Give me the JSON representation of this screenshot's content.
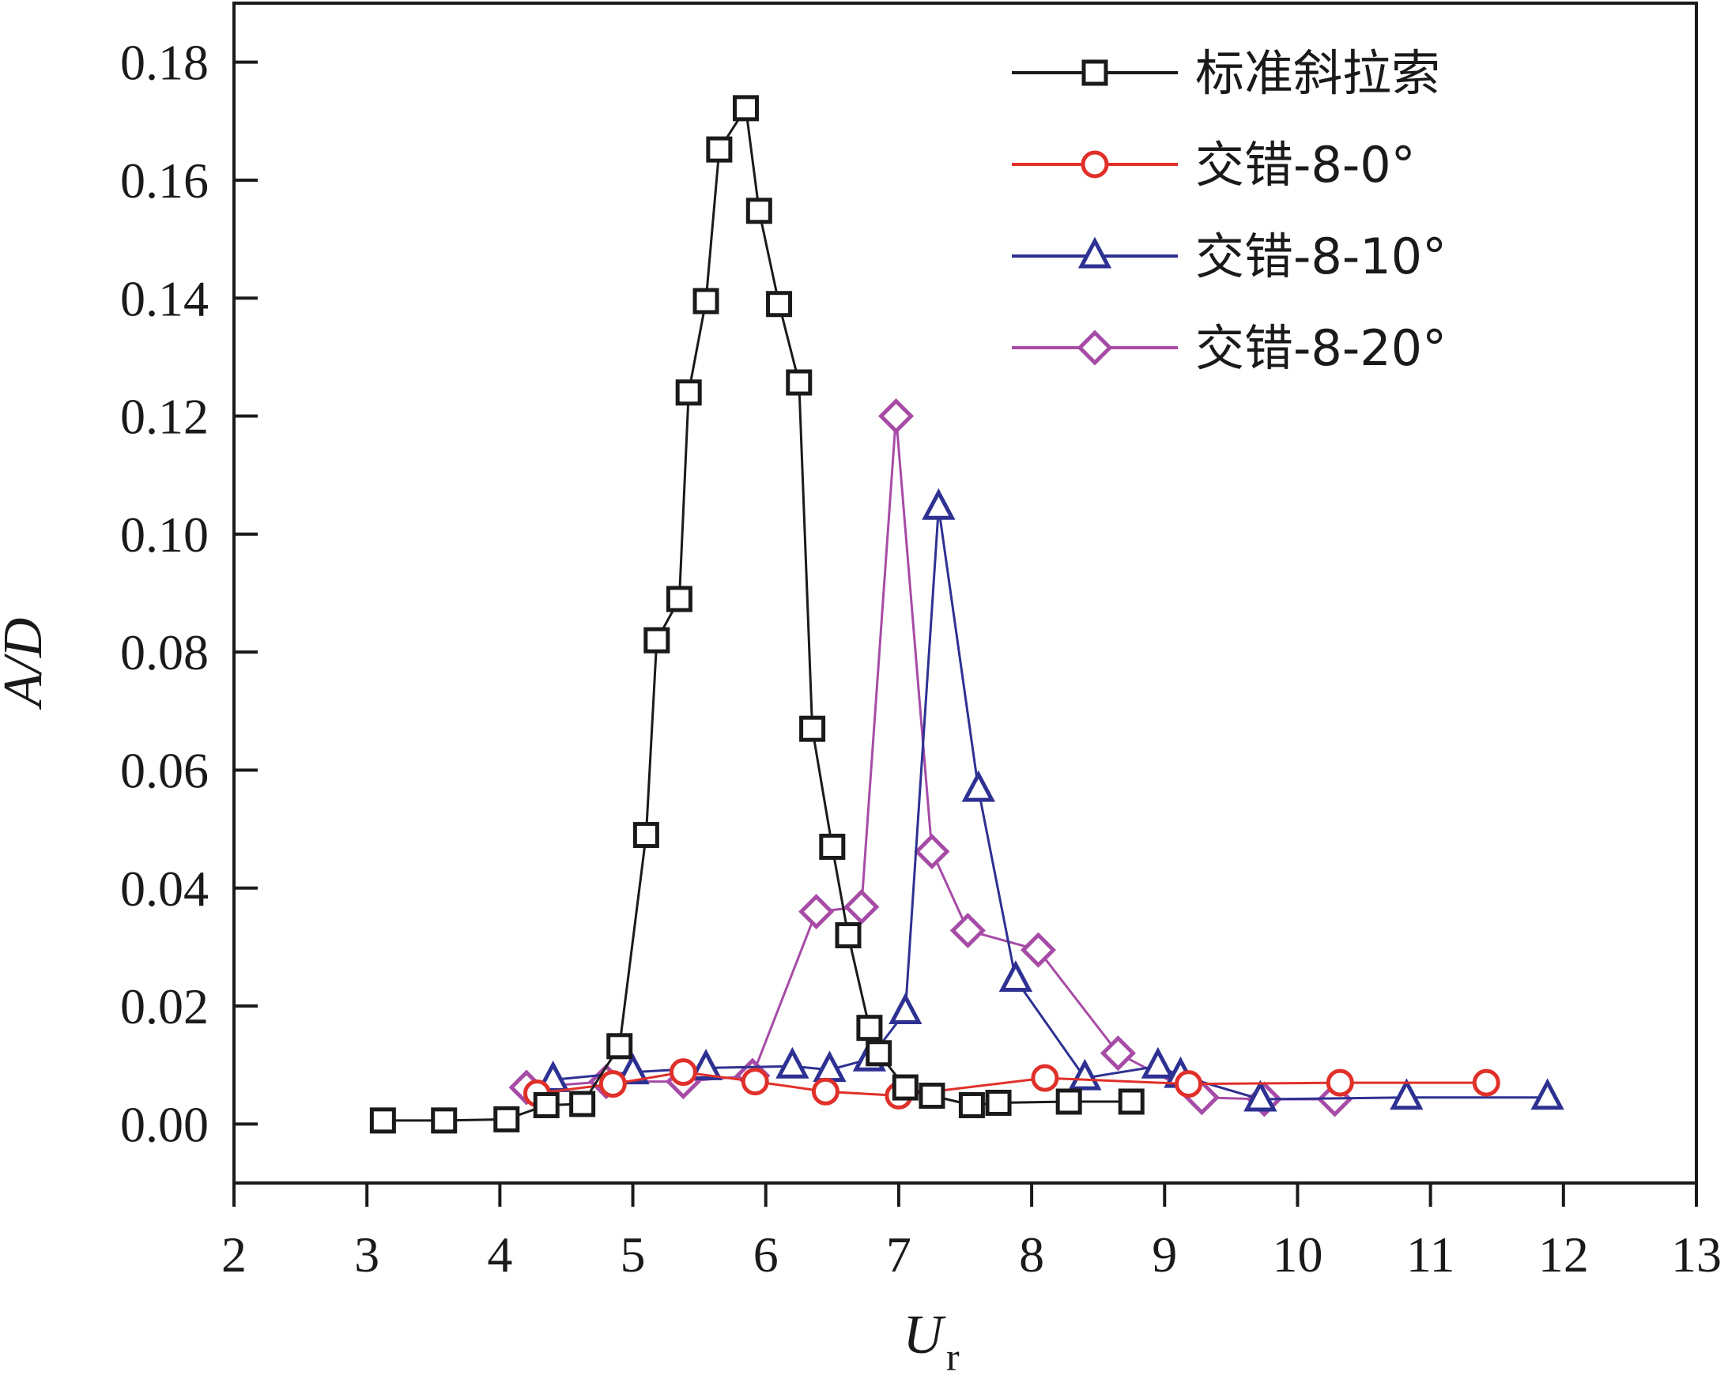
{
  "chart_data": {
    "type": "line",
    "xlabel": "U",
    "xlabel_sub": "r",
    "ylabel": "A/D",
    "xlim": [
      2,
      13
    ],
    "ylim": [
      -0.01,
      0.19
    ],
    "x_ticks": [
      "2",
      "3",
      "4",
      "5",
      "6",
      "7",
      "8",
      "9",
      "10",
      "11",
      "12",
      "13"
    ],
    "y_ticks": [
      "0.00",
      "0.02",
      "0.04",
      "0.06",
      "0.08",
      "0.10",
      "0.12",
      "0.14",
      "0.16",
      "0.18"
    ],
    "grid": false,
    "legend_position": "top-right",
    "series": [
      {
        "name": "标准斜拉索",
        "color": "#1a1a1a",
        "marker": "square",
        "points": [
          [
            3.12,
            0.0006
          ],
          [
            3.58,
            0.0006
          ],
          [
            4.05,
            0.0008
          ],
          [
            4.35,
            0.0032
          ],
          [
            4.62,
            0.0034
          ],
          [
            4.9,
            0.0132
          ],
          [
            5.1,
            0.049
          ],
          [
            5.18,
            0.082
          ],
          [
            5.35,
            0.089
          ],
          [
            5.42,
            0.124
          ],
          [
            5.55,
            0.1395
          ],
          [
            5.65,
            0.1652
          ],
          [
            5.85,
            0.1722
          ],
          [
            5.95,
            0.1548
          ],
          [
            6.1,
            0.139
          ],
          [
            6.25,
            0.1257
          ],
          [
            6.35,
            0.067
          ],
          [
            6.5,
            0.047
          ],
          [
            6.62,
            0.032
          ],
          [
            6.78,
            0.0163
          ],
          [
            6.85,
            0.012
          ],
          [
            7.05,
            0.0062
          ],
          [
            7.25,
            0.0048
          ],
          [
            7.55,
            0.0032
          ],
          [
            7.75,
            0.0036
          ],
          [
            8.28,
            0.0038
          ],
          [
            8.75,
            0.0038
          ]
        ]
      },
      {
        "name": "交错-8-0°",
        "color": "#e0302a",
        "marker": "circle",
        "points": [
          [
            4.28,
            0.0052
          ],
          [
            4.85,
            0.0068
          ],
          [
            5.38,
            0.0088
          ],
          [
            5.92,
            0.0072
          ],
          [
            6.45,
            0.0055
          ],
          [
            7.0,
            0.0048
          ],
          [
            8.1,
            0.0078
          ],
          [
            9.18,
            0.0068
          ],
          [
            10.32,
            0.007
          ],
          [
            11.42,
            0.007
          ]
        ]
      },
      {
        "name": "交错-8-10°",
        "color": "#2e3192",
        "marker": "triangle",
        "points": [
          [
            4.4,
            0.0075
          ],
          [
            5.0,
            0.0088
          ],
          [
            5.55,
            0.0095
          ],
          [
            6.2,
            0.0098
          ],
          [
            6.48,
            0.0092
          ],
          [
            6.78,
            0.011
          ],
          [
            7.05,
            0.019
          ],
          [
            7.3,
            0.1045
          ],
          [
            7.6,
            0.0567
          ],
          [
            7.88,
            0.0245
          ],
          [
            8.4,
            0.0078
          ],
          [
            8.95,
            0.0098
          ],
          [
            9.12,
            0.0082
          ],
          [
            9.72,
            0.0042
          ],
          [
            10.82,
            0.0045
          ],
          [
            11.88,
            0.0045
          ]
        ]
      },
      {
        "name": "交错-8-20°",
        "color": "#a64ca6",
        "marker": "diamond",
        "points": [
          [
            4.2,
            0.0062
          ],
          [
            4.8,
            0.0072
          ],
          [
            5.38,
            0.0072
          ],
          [
            5.9,
            0.0082
          ],
          [
            6.38,
            0.036
          ],
          [
            6.72,
            0.0368
          ],
          [
            6.98,
            0.12
          ],
          [
            7.25,
            0.0462
          ],
          [
            7.52,
            0.0328
          ],
          [
            8.05,
            0.0295
          ],
          [
            8.65,
            0.012
          ],
          [
            9.28,
            0.0045
          ],
          [
            9.75,
            0.0042
          ],
          [
            10.28,
            0.0042
          ]
        ]
      }
    ]
  }
}
